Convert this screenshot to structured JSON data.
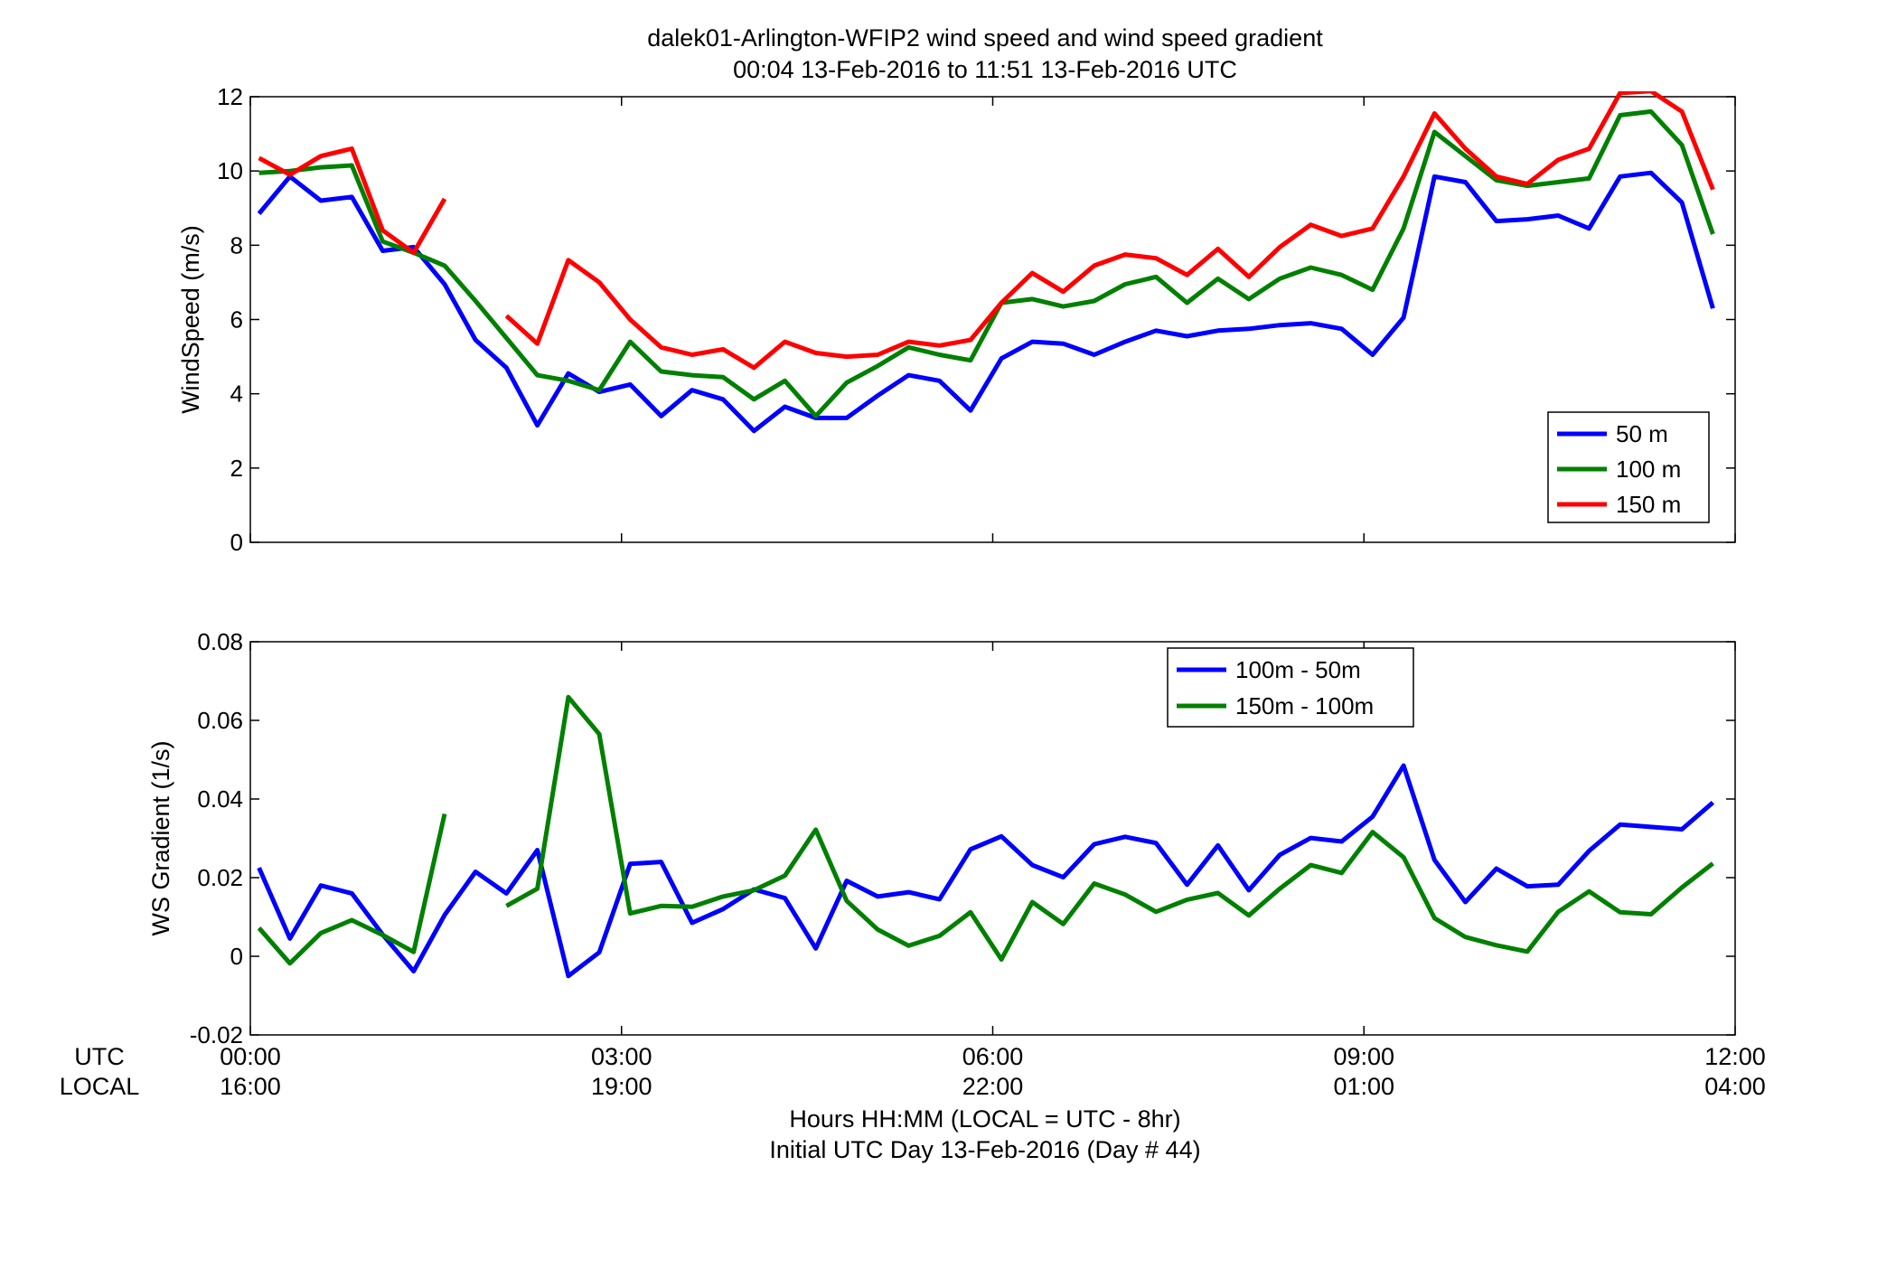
{
  "figure": {
    "title_line1": "dalek01-Arlington-WFIP2  wind speed and wind speed gradient",
    "title_line2": "00:04 13-Feb-2016 to 11:51 13-Feb-2016  UTC",
    "row_label_utc": "UTC",
    "row_label_local": "LOCAL",
    "xlabel_line1": "Hours HH:MM  (LOCAL = UTC - 8hr)",
    "xlabel_line2": "Initial UTC Day 13-Feb-2016 (Day # 44)"
  },
  "chart_data": [
    {
      "type": "line",
      "ylabel": "WindSpeed (m/s)",
      "xlim": [
        0,
        12
      ],
      "ylim": [
        0,
        12
      ],
      "yticks": [
        0,
        2,
        4,
        6,
        8,
        10,
        12
      ],
      "ytick_labels": [
        "0",
        "2",
        "4",
        "6",
        "8",
        "10",
        "12"
      ],
      "xticks": [
        0,
        3,
        6,
        9,
        12
      ],
      "xtick_labels_utc": [
        "00:00",
        "03:00",
        "06:00",
        "09:00",
        "12:00"
      ],
      "xtick_labels_local": [
        "16:00",
        "19:00",
        "22:00",
        "01:00",
        "04:00"
      ],
      "grid": false,
      "legend_position": "bottom-right",
      "x": [
        0.07,
        0.32,
        0.57,
        0.82,
        1.07,
        1.32,
        1.57,
        1.82,
        2.07,
        2.32,
        2.57,
        2.82,
        3.07,
        3.32,
        3.57,
        3.82,
        4.07,
        4.32,
        4.57,
        4.82,
        5.07,
        5.32,
        5.57,
        5.82,
        6.07,
        6.32,
        6.57,
        6.82,
        7.07,
        7.32,
        7.57,
        7.82,
        8.07,
        8.32,
        8.57,
        8.82,
        9.07,
        9.32,
        9.57,
        9.82,
        10.07,
        10.32,
        10.57,
        10.82,
        11.07,
        11.32,
        11.57,
        11.82
      ],
      "series": [
        {
          "name": "50 m",
          "color": "#0000ff",
          "values": [
            8.85,
            9.85,
            9.2,
            9.3,
            7.85,
            7.95,
            6.95,
            5.45,
            4.7,
            3.15,
            4.55,
            4.05,
            4.25,
            3.4,
            4.1,
            3.85,
            3.0,
            3.65,
            3.35,
            3.35,
            3.95,
            4.5,
            4.35,
            3.55,
            4.95,
            5.4,
            5.35,
            5.05,
            5.4,
            5.7,
            5.55,
            5.7,
            5.75,
            5.85,
            5.9,
            5.75,
            5.05,
            6.05,
            9.85,
            9.7,
            8.65,
            8.7,
            8.8,
            8.45,
            9.85,
            9.95,
            9.15,
            6.3
          ]
        },
        {
          "name": "100 m",
          "color": "#008000",
          "values": [
            9.95,
            10.0,
            10.1,
            10.15,
            8.1,
            7.8,
            7.45,
            6.5,
            5.5,
            4.5,
            4.35,
            4.1,
            5.4,
            4.6,
            4.5,
            4.45,
            3.85,
            4.35,
            3.4,
            4.3,
            4.75,
            5.25,
            5.05,
            4.9,
            6.45,
            6.55,
            6.35,
            6.5,
            6.95,
            7.15,
            6.45,
            7.1,
            6.55,
            7.1,
            7.4,
            7.2,
            6.8,
            8.45,
            11.05,
            10.4,
            9.75,
            9.6,
            9.7,
            9.8,
            11.5,
            11.6,
            10.7,
            8.3
          ]
        },
        {
          "name": "150 m",
          "color": "#ff0000",
          "values": [
            10.35,
            9.9,
            10.4,
            10.6,
            8.4,
            7.8,
            9.25,
            null,
            6.1,
            5.35,
            7.6,
            7.0,
            6.0,
            5.25,
            5.05,
            5.2,
            4.7,
            5.4,
            5.1,
            5.0,
            5.05,
            5.4,
            5.3,
            5.45,
            6.45,
            7.25,
            6.75,
            7.45,
            7.75,
            7.65,
            7.2,
            7.9,
            7.15,
            7.95,
            8.55,
            8.25,
            8.45,
            9.85,
            11.55,
            10.6,
            9.85,
            9.65,
            10.3,
            10.6,
            12.1,
            12.15,
            11.6,
            9.5
          ]
        }
      ]
    },
    {
      "type": "line",
      "ylabel": "WS Gradient (1/s)",
      "xlim": [
        0,
        12
      ],
      "ylim": [
        -0.02,
        0.08
      ],
      "yticks": [
        -0.02,
        0,
        0.02,
        0.04,
        0.06,
        0.08
      ],
      "ytick_labels": [
        "-0.02",
        "0",
        "0.02",
        "0.04",
        "0.06",
        "0.08"
      ],
      "xticks": [
        0,
        3,
        6,
        9,
        12
      ],
      "grid": false,
      "legend_position": "top-right",
      "x": [
        0.07,
        0.32,
        0.57,
        0.82,
        1.07,
        1.32,
        1.57,
        1.82,
        2.07,
        2.32,
        2.57,
        2.82,
        3.07,
        3.32,
        3.57,
        3.82,
        4.07,
        4.32,
        4.57,
        4.82,
        5.07,
        5.32,
        5.57,
        5.82,
        6.07,
        6.32,
        6.57,
        6.82,
        7.07,
        7.32,
        7.57,
        7.82,
        8.07,
        8.32,
        8.57,
        8.82,
        9.07,
        9.32,
        9.57,
        9.82,
        10.07,
        10.32,
        10.57,
        10.82,
        11.07,
        11.32,
        11.57,
        11.82
      ],
      "series": [
        {
          "name": "100m - 50m",
          "color": "#0000ff",
          "values": [
            0.0225,
            0.0045,
            0.018,
            0.016,
            0.0055,
            -0.0038,
            0.0105,
            0.0215,
            0.016,
            0.027,
            -0.005,
            0.001,
            0.0235,
            0.024,
            0.0085,
            0.012,
            0.017,
            0.0148,
            0.002,
            0.0192,
            0.0152,
            0.0163,
            0.0145,
            0.0272,
            0.0305,
            0.0232,
            0.0201,
            0.0285,
            0.0304,
            0.0288,
            0.0182,
            0.0282,
            0.0168,
            0.0258,
            0.0301,
            0.0292,
            0.0355,
            0.0485,
            0.0245,
            0.0138,
            0.0223,
            0.0178,
            0.0182,
            0.0268,
            0.0335,
            0.0329,
            0.0323,
            0.0391
          ]
        },
        {
          "name": "150m - 100m",
          "color": "#008000",
          "values": [
            0.0072,
            -0.0018,
            0.0059,
            0.0092,
            0.0054,
            0.0011,
            0.0362,
            null,
            0.0128,
            0.0172,
            0.0659,
            0.0565,
            0.0109,
            0.0128,
            0.0126,
            0.0152,
            0.0168,
            0.0205,
            0.0322,
            0.0141,
            0.0068,
            0.0027,
            0.0052,
            0.0112,
            -0.0008,
            0.0138,
            0.0082,
            0.0185,
            0.0157,
            0.0113,
            0.0144,
            0.0161,
            0.0104,
            0.0172,
            0.0232,
            0.0212,
            0.0316,
            0.0252,
            0.0097,
            0.0049,
            0.0028,
            0.0012,
            0.0113,
            0.0165,
            0.0112,
            0.0107,
            0.0175,
            0.0236
          ]
        }
      ]
    }
  ]
}
